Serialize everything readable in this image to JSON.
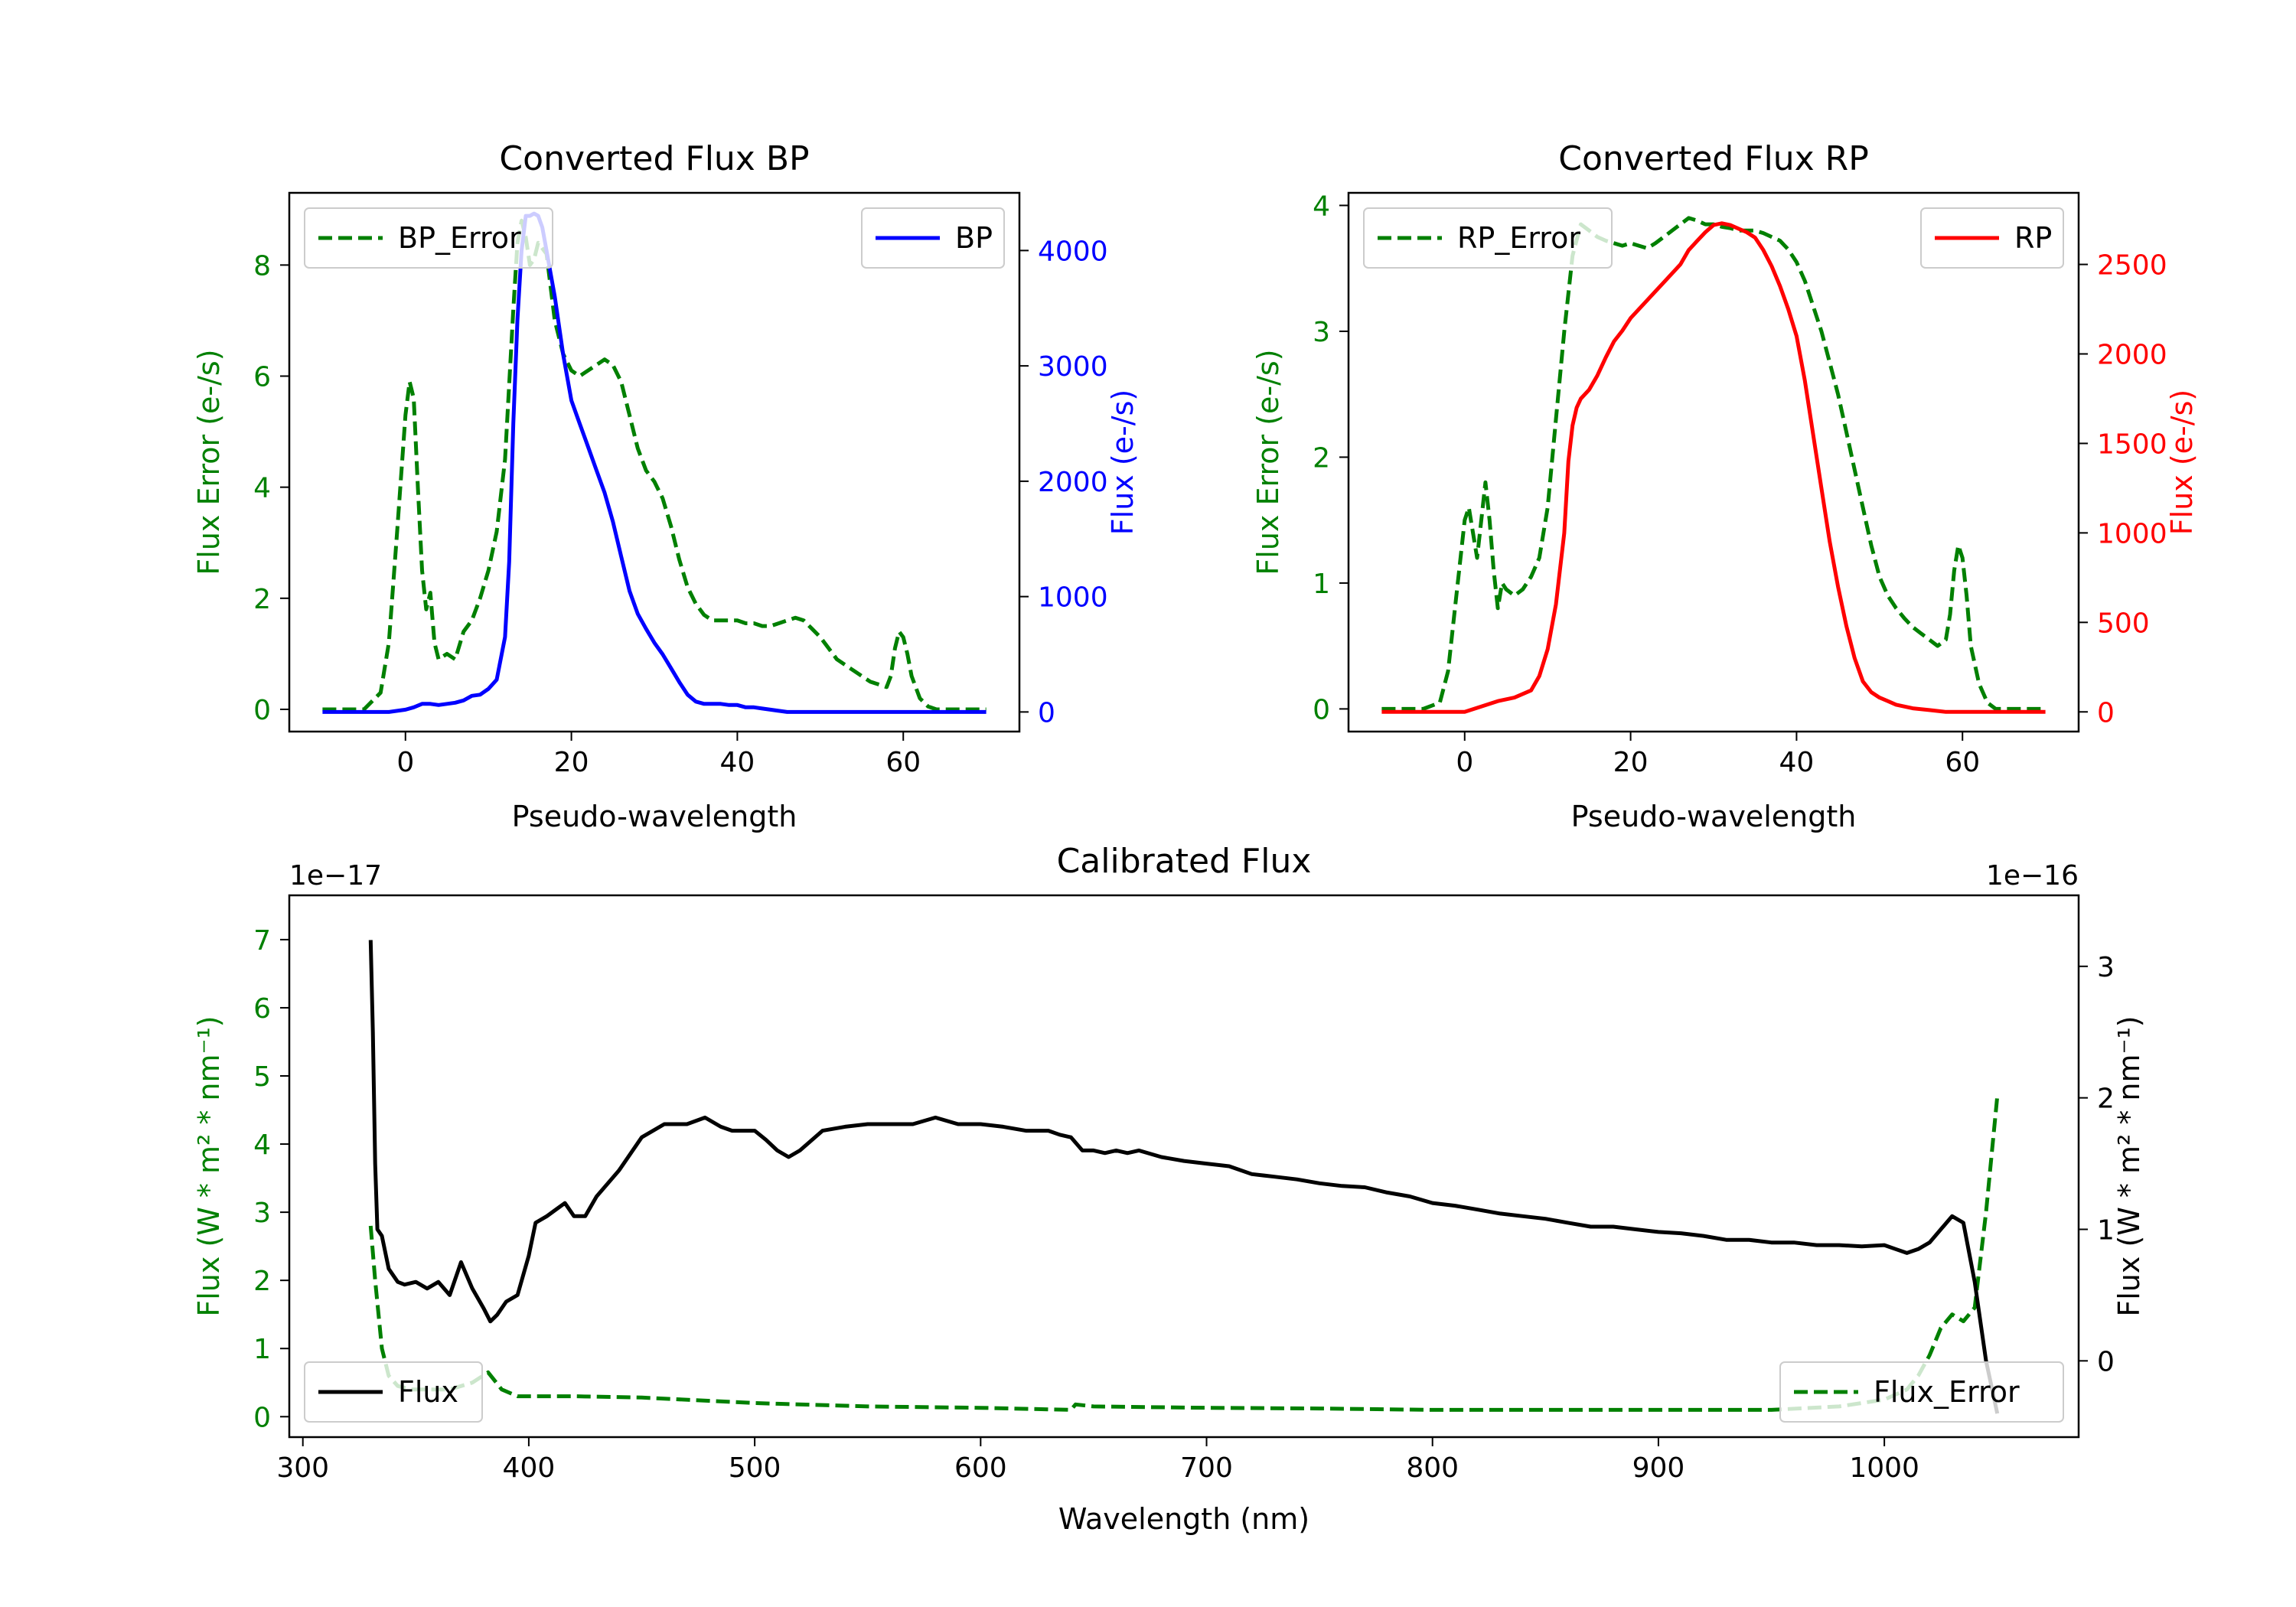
{
  "chart_data": [
    {
      "id": "bp",
      "type": "line",
      "title": "Converted Flux BP",
      "xlabel": "Pseudo-wavelength",
      "xlim": [
        -14,
        74
      ],
      "xticks": [
        0,
        20,
        40,
        60
      ],
      "left_axis": {
        "label": "Flux Error (e-/s)",
        "color": "#008000",
        "ylim": [
          -0.4,
          9.3
        ],
        "ticks": [
          0,
          2,
          4,
          6,
          8
        ]
      },
      "right_axis": {
        "label": "Flux (e-/s)",
        "color": "#0000ff",
        "ylim": [
          -170,
          4500
        ],
        "ticks": [
          0,
          1000,
          2000,
          3000,
          4000
        ]
      },
      "legend_left": {
        "label": "BP_Error",
        "placement": "upper-left"
      },
      "legend_right": {
        "label": "BP",
        "placement": "upper-right"
      },
      "series": [
        {
          "name": "BP_Error",
          "axis": "left",
          "color": "#008000",
          "style": "dashed",
          "x": [
            -10,
            -5,
            -3,
            -2,
            -1,
            0,
            0.5,
            1,
            1.5,
            2,
            2.5,
            3,
            3.5,
            4,
            5,
            6,
            7,
            8,
            9,
            10,
            11,
            12,
            13,
            13.5,
            14,
            14.5,
            15,
            15.5,
            16,
            17,
            18,
            19,
            20,
            21,
            22,
            23,
            24,
            25,
            26,
            27,
            28,
            29,
            30,
            31,
            32,
            33,
            34,
            35,
            36,
            37,
            38,
            39,
            40,
            41,
            42,
            43,
            44,
            45,
            46,
            47,
            48,
            49,
            50,
            51,
            52,
            53,
            54,
            55,
            56,
            57,
            58,
            58.5,
            59,
            59.5,
            60,
            60.5,
            61,
            62,
            63,
            64,
            65,
            70
          ],
          "y": [
            0,
            0,
            0.3,
            1.2,
            3.2,
            5.3,
            5.9,
            5.6,
            4,
            2.5,
            1.8,
            2.1,
            1.2,
            0.9,
            1.0,
            0.9,
            1.4,
            1.6,
            2.0,
            2.5,
            3.2,
            4.5,
            7.2,
            8.4,
            8.8,
            8.5,
            8.0,
            8.1,
            8.4,
            8.2,
            7.0,
            6.4,
            6.1,
            6.0,
            6.1,
            6.2,
            6.3,
            6.2,
            5.9,
            5.3,
            4.7,
            4.3,
            4.1,
            3.8,
            3.3,
            2.7,
            2.2,
            1.9,
            1.7,
            1.6,
            1.6,
            1.6,
            1.6,
            1.55,
            1.55,
            1.5,
            1.5,
            1.55,
            1.6,
            1.65,
            1.6,
            1.45,
            1.3,
            1.1,
            0.9,
            0.8,
            0.7,
            0.6,
            0.5,
            0.45,
            0.4,
            0.6,
            1.1,
            1.4,
            1.3,
            1.0,
            0.6,
            0.2,
            0.05,
            0,
            0,
            0
          ]
        },
        {
          "name": "BP",
          "axis": "right",
          "color": "#0000ff",
          "style": "solid",
          "x": [
            -10,
            -5,
            -2,
            0,
            1,
            2,
            3,
            4,
            5,
            6,
            7,
            8,
            9,
            10,
            11,
            12,
            12.5,
            13,
            13.5,
            14,
            14.5,
            15,
            15.5,
            16,
            16.5,
            17,
            18,
            19,
            20,
            21,
            22,
            23,
            24,
            25,
            26,
            27,
            28,
            29,
            30,
            31,
            32,
            33,
            34,
            35,
            36,
            37,
            38,
            39,
            40,
            41,
            42,
            43,
            44,
            45,
            46,
            47,
            48,
            49,
            50,
            52,
            54,
            56,
            58,
            60,
            62,
            65,
            70
          ],
          "y": [
            0,
            0,
            0,
            20,
            40,
            70,
            70,
            60,
            70,
            80,
            100,
            140,
            150,
            200,
            280,
            650,
            1300,
            2500,
            3400,
            4000,
            4300,
            4300,
            4320,
            4300,
            4200,
            4000,
            3600,
            3100,
            2700,
            2500,
            2300,
            2100,
            1900,
            1650,
            1350,
            1050,
            850,
            720,
            600,
            500,
            380,
            260,
            150,
            90,
            70,
            70,
            70,
            60,
            60,
            40,
            40,
            30,
            20,
            10,
            0,
            0,
            0,
            0,
            0,
            0,
            0,
            0,
            0,
            0,
            0,
            0,
            0
          ]
        }
      ]
    },
    {
      "id": "rp",
      "type": "line",
      "title": "Converted Flux RP",
      "xlabel": "Pseudo-wavelength",
      "xlim": [
        -14,
        74
      ],
      "xticks": [
        0,
        20,
        40,
        60
      ],
      "left_axis": {
        "label": "Flux Error (e-/s)",
        "color": "#008000",
        "ylim": [
          -0.18,
          4.1
        ],
        "ticks": [
          0,
          1,
          2,
          3,
          4
        ]
      },
      "right_axis": {
        "label": "Flux (e-/s)",
        "color": "#ff0000",
        "ylim": [
          -110,
          2900
        ],
        "ticks": [
          0,
          500,
          1000,
          1500,
          2000,
          2500
        ]
      },
      "legend_left": {
        "label": "RP_Error",
        "placement": "upper-left"
      },
      "legend_right": {
        "label": "RP",
        "placement": "upper-right"
      },
      "series": [
        {
          "name": "RP_Error",
          "axis": "left",
          "color": "#008000",
          "style": "dashed",
          "x": [
            -10,
            -5,
            -3,
            -2,
            -1,
            0,
            0.5,
            1,
            1.5,
            2,
            2.5,
            3,
            3.5,
            4,
            4.5,
            5,
            6,
            7,
            8,
            9,
            10,
            11,
            12,
            13,
            14,
            15,
            16,
            17,
            18,
            19,
            20,
            21,
            22,
            23,
            24,
            25,
            26,
            27,
            28,
            29,
            30,
            31,
            32,
            33,
            34,
            35,
            36,
            37,
            38,
            39,
            40,
            41,
            42,
            43,
            44,
            45,
            46,
            47,
            48,
            49,
            50,
            51,
            52,
            53,
            54,
            55,
            56,
            57,
            58,
            58.5,
            59,
            59.5,
            60,
            60.5,
            61,
            62,
            63,
            64,
            65,
            70
          ],
          "y": [
            0,
            0,
            0.05,
            0.3,
            0.9,
            1.5,
            1.6,
            1.4,
            1.2,
            1.5,
            1.8,
            1.5,
            1.1,
            0.8,
            1.0,
            0.95,
            0.9,
            0.95,
            1.05,
            1.2,
            1.6,
            2.3,
            3.0,
            3.6,
            3.85,
            3.8,
            3.75,
            3.72,
            3.7,
            3.68,
            3.7,
            3.68,
            3.66,
            3.7,
            3.75,
            3.8,
            3.85,
            3.9,
            3.88,
            3.85,
            3.85,
            3.83,
            3.82,
            3.8,
            3.8,
            3.8,
            3.78,
            3.75,
            3.72,
            3.65,
            3.55,
            3.4,
            3.2,
            3.0,
            2.75,
            2.5,
            2.2,
            1.9,
            1.6,
            1.3,
            1.05,
            0.9,
            0.8,
            0.72,
            0.65,
            0.6,
            0.55,
            0.5,
            0.55,
            0.75,
            1.1,
            1.3,
            1.2,
            0.9,
            0.5,
            0.2,
            0.05,
            0,
            0,
            0
          ]
        },
        {
          "name": "RP",
          "axis": "right",
          "color": "#ff0000",
          "style": "solid",
          "x": [
            -10,
            -5,
            0,
            2,
            4,
            6,
            8,
            9,
            10,
            11,
            12,
            12.5,
            13,
            13.5,
            14,
            15,
            16,
            17,
            18,
            19,
            20,
            22,
            24,
            26,
            27,
            28,
            29,
            30,
            31,
            32,
            33,
            34,
            35,
            36,
            37,
            38,
            39,
            40,
            41,
            42,
            43,
            44,
            45,
            46,
            47,
            48,
            49,
            50,
            51,
            52,
            54,
            56,
            58,
            60,
            62,
            65,
            70
          ],
          "y": [
            0,
            0,
            0,
            30,
            60,
            80,
            120,
            200,
            350,
            600,
            1000,
            1400,
            1600,
            1700,
            1750,
            1800,
            1880,
            1980,
            2070,
            2130,
            2200,
            2300,
            2400,
            2500,
            2580,
            2630,
            2680,
            2720,
            2730,
            2720,
            2700,
            2680,
            2650,
            2580,
            2490,
            2380,
            2250,
            2100,
            1850,
            1550,
            1250,
            950,
            700,
            480,
            300,
            170,
            110,
            80,
            60,
            40,
            20,
            10,
            0,
            0,
            0,
            0,
            0
          ]
        }
      ]
    },
    {
      "id": "calibrated",
      "type": "line",
      "title": "Calibrated Flux",
      "xlabel": "Wavelength (nm)",
      "xlim": [
        294,
        1086
      ],
      "xticks": [
        300,
        400,
        500,
        600,
        700,
        800,
        900,
        1000
      ],
      "left_axis": {
        "label": "Flux (W * m² * nm⁻¹)",
        "color": "#008000",
        "ylim": [
          -0.3,
          7.65
        ],
        "ticks": [
          0,
          1,
          2,
          3,
          4,
          5,
          6,
          7
        ],
        "offset": "1e−17"
      },
      "right_axis": {
        "label": "Flux (W * m² * nm⁻¹)",
        "color": "#000000",
        "ylim": [
          -0.58,
          3.54
        ],
        "ticks": [
          0,
          1,
          2,
          3
        ],
        "offset": "1e−16"
      },
      "legend_left": {
        "label": "Flux",
        "placement": "lower-left"
      },
      "legend_right": {
        "label": "Flux_Error",
        "placement": "lower-right"
      },
      "series": [
        {
          "name": "Flux_Error",
          "axis": "left",
          "color": "#008000",
          "style": "dashed",
          "x": [
            330,
            332,
            335,
            338,
            342,
            348,
            355,
            365,
            375,
            382,
            388,
            395,
            405,
            420,
            450,
            500,
            550,
            600,
            640,
            642,
            650,
            700,
            750,
            800,
            850,
            900,
            950,
            980,
            1000,
            1010,
            1015,
            1020,
            1025,
            1030,
            1035,
            1040,
            1045,
            1050
          ],
          "y": [
            2.8,
            2.0,
            1.0,
            0.6,
            0.45,
            0.4,
            0.4,
            0.4,
            0.5,
            0.65,
            0.4,
            0.3,
            0.3,
            0.3,
            0.28,
            0.2,
            0.15,
            0.13,
            0.1,
            0.18,
            0.15,
            0.13,
            0.12,
            0.1,
            0.1,
            0.1,
            0.1,
            0.15,
            0.25,
            0.4,
            0.6,
            0.9,
            1.3,
            1.5,
            1.4,
            1.6,
            3.0,
            4.7
          ]
        },
        {
          "name": "Flux",
          "axis": "right",
          "color": "#000000",
          "style": "solid",
          "x": [
            330,
            331,
            332,
            333,
            335,
            338,
            342,
            345,
            350,
            355,
            360,
            365,
            370,
            375,
            380,
            383,
            386,
            390,
            395,
            400,
            403,
            408,
            412,
            416,
            420,
            425,
            430,
            440,
            450,
            460,
            470,
            478,
            485,
            490,
            500,
            505,
            510,
            515,
            520,
            530,
            540,
            550,
            560,
            570,
            580,
            590,
            600,
            610,
            620,
            630,
            635,
            640,
            645,
            650,
            655,
            660,
            665,
            670,
            680,
            690,
            700,
            710,
            720,
            730,
            740,
            750,
            760,
            770,
            780,
            790,
            800,
            810,
            820,
            830,
            840,
            850,
            860,
            870,
            880,
            890,
            900,
            910,
            920,
            930,
            940,
            950,
            960,
            970,
            980,
            990,
            1000,
            1005,
            1010,
            1015,
            1020,
            1025,
            1030,
            1035,
            1040,
            1045,
            1050
          ],
          "y": [
            3.2,
            2.5,
            1.5,
            1.0,
            0.95,
            0.7,
            0.6,
            0.58,
            0.6,
            0.55,
            0.6,
            0.5,
            0.75,
            0.55,
            0.4,
            0.3,
            0.35,
            0.45,
            0.5,
            0.8,
            1.05,
            1.1,
            1.15,
            1.2,
            1.1,
            1.1,
            1.25,
            1.45,
            1.7,
            1.8,
            1.8,
            1.85,
            1.78,
            1.75,
            1.75,
            1.68,
            1.6,
            1.55,
            1.6,
            1.75,
            1.78,
            1.8,
            1.8,
            1.8,
            1.85,
            1.8,
            1.8,
            1.78,
            1.75,
            1.75,
            1.72,
            1.7,
            1.6,
            1.6,
            1.58,
            1.6,
            1.58,
            1.6,
            1.55,
            1.52,
            1.5,
            1.48,
            1.42,
            1.4,
            1.38,
            1.35,
            1.33,
            1.32,
            1.28,
            1.25,
            1.2,
            1.18,
            1.15,
            1.12,
            1.1,
            1.08,
            1.05,
            1.02,
            1.02,
            1.0,
            0.98,
            0.97,
            0.95,
            0.92,
            0.92,
            0.9,
            0.9,
            0.88,
            0.88,
            0.87,
            0.88,
            0.85,
            0.82,
            0.85,
            0.9,
            1.0,
            1.1,
            1.05,
            0.6,
            0.0,
            -0.4
          ]
        }
      ]
    }
  ]
}
